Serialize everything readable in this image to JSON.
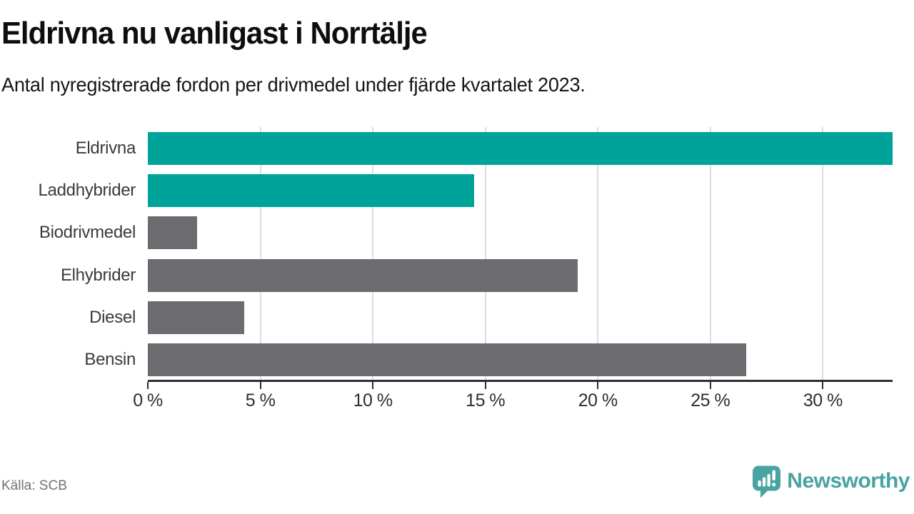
{
  "header": {
    "title": "Eldrivna nu vanligast i Norrtälje",
    "subtitle": "Antal nyregistrerade fordon per drivmedel under fjärde kvartalet 2023."
  },
  "chart_data": {
    "type": "bar",
    "orientation": "horizontal",
    "title": "Eldrivna nu vanligast i Norrtälje",
    "subtitle": "Antal nyregistrerade fordon per drivmedel under fjärde kvartalet 2023.",
    "categories": [
      "Eldrivna",
      "Laddhybrider",
      "Biodrivmedel",
      "Elhybrider",
      "Diesel",
      "Bensin"
    ],
    "values": [
      33.1,
      14.5,
      2.2,
      19.1,
      4.3,
      26.6
    ],
    "unit": "%",
    "bar_colors": [
      "#00a39a",
      "#00a39a",
      "#6c6c70",
      "#6c6c70",
      "#6c6c70",
      "#6c6c70"
    ],
    "xlim": [
      0,
      33.1
    ],
    "xticks": [
      0,
      5,
      10,
      15,
      20,
      25,
      30
    ],
    "xtick_labels": [
      "0 %",
      "5 %",
      "10 %",
      "15 %",
      "20 %",
      "25 %",
      "30 %"
    ],
    "grid": "vertical",
    "legend": "none",
    "source": "Källa: SCB"
  },
  "footer": {
    "source": "Källa: SCB",
    "brand": "Newsworthy"
  },
  "colors": {
    "accent_teal": "#00a39a",
    "bar_gray": "#6c6c70",
    "brand_teal": "#49a3a0",
    "axis": "#2e2e2e",
    "grid": "#dedede"
  }
}
